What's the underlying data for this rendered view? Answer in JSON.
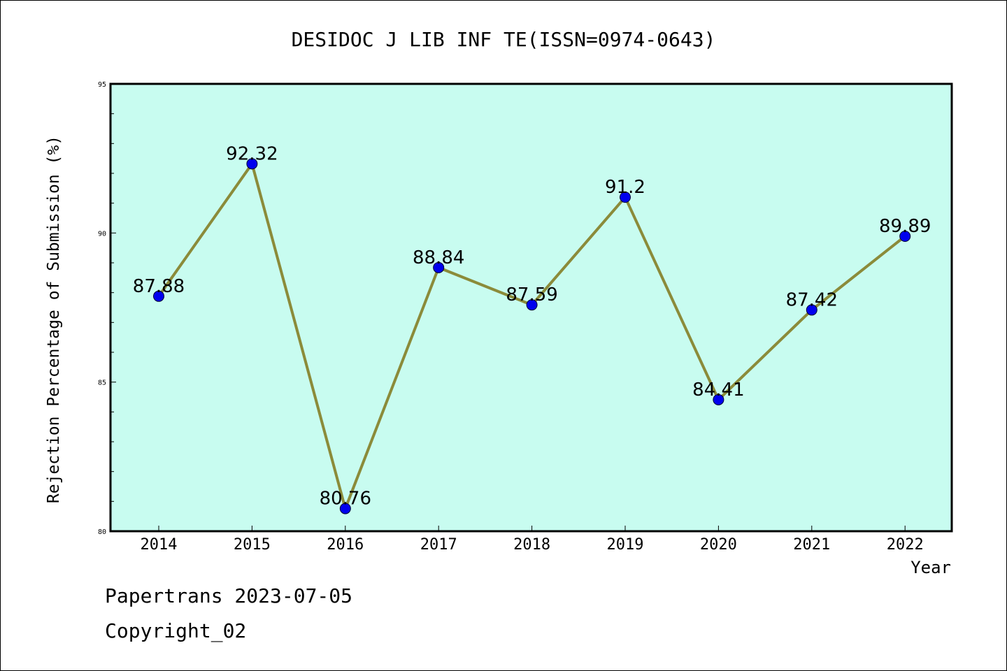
{
  "footer": {
    "line1": "Papertrans 2023-07-05",
    "line2": "Copyright_02"
  },
  "chart_data": {
    "type": "line",
    "title": "DESIDOC J LIB INF TE(ISSN=0974-0643)",
    "xlabel": "Year",
    "ylabel": "Rejection Percentage of Submission (%)",
    "categories": [
      "2014",
      "2015",
      "2016",
      "2017",
      "2018",
      "2019",
      "2020",
      "2021",
      "2022"
    ],
    "values": [
      87.88,
      92.32,
      80.76,
      88.84,
      87.59,
      91.2,
      84.41,
      87.42,
      89.89
    ],
    "data_labels": [
      "87.88",
      "92.32",
      "80.76",
      "88.84",
      "87.59",
      "91.2",
      "84.41",
      "87.42",
      "89.89"
    ],
    "ylim": [
      80,
      95
    ],
    "yticks": [
      80,
      85,
      90,
      95
    ],
    "grid": false,
    "colors": {
      "plot_bg": "#c8fcf0",
      "line": "#8b8b3a",
      "marker": "#0000ee"
    }
  }
}
